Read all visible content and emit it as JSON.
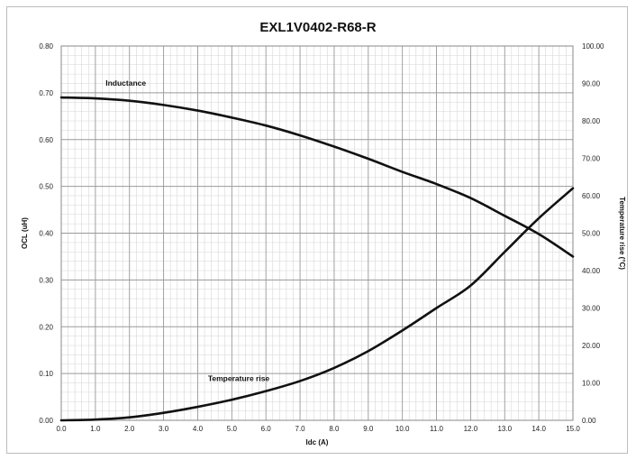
{
  "chart_data": {
    "type": "line",
    "title": "EXL1V0402-R68-R",
    "xlabel": "Idc (A)",
    "ylabel": "OCL (uH)",
    "y2label": "Temperature rise (°C)",
    "xlim": [
      0,
      15
    ],
    "ylim": [
      0,
      0.8
    ],
    "y2lim": [
      0,
      100
    ],
    "x_ticks": [
      "0.0",
      "1.0",
      "2.0",
      "3.0",
      "4.0",
      "5.0",
      "6.0",
      "7.0",
      "8.0",
      "9.0",
      "10.0",
      "11.0",
      "12.0",
      "13.0",
      "14.0",
      "15.0"
    ],
    "y_ticks": [
      "0.00",
      "0.10",
      "0.20",
      "0.30",
      "0.40",
      "0.50",
      "0.60",
      "0.70",
      "0.80"
    ],
    "y2_ticks": [
      "0.00",
      "10.00",
      "20.00",
      "30.00",
      "40.00",
      "50.00",
      "60.00",
      "70.00",
      "80.00",
      "90.00",
      "100.00"
    ],
    "grid": true,
    "legend": "none",
    "series": [
      {
        "name": "Inductance",
        "axis": "left",
        "color": "#111111",
        "x": [
          0,
          1,
          2,
          3,
          4,
          5,
          6,
          7,
          8,
          9,
          10,
          11,
          12,
          13,
          14,
          15
        ],
        "y": [
          0.69,
          0.688,
          0.683,
          0.674,
          0.662,
          0.647,
          0.63,
          0.609,
          0.585,
          0.559,
          0.531,
          0.505,
          0.475,
          0.437,
          0.398,
          0.35
        ]
      },
      {
        "name": "Temperature rise",
        "axis": "right",
        "color": "#111111",
        "x": [
          0,
          1,
          2,
          3,
          4,
          5,
          6,
          7,
          8,
          9,
          10,
          11,
          12,
          13,
          14,
          15
        ],
        "y": [
          0.0,
          0.2,
          0.8,
          2.0,
          3.6,
          5.5,
          7.8,
          10.5,
          14.0,
          18.5,
          24.0,
          30.0,
          36.0,
          45.0,
          54.0,
          62.0
        ]
      }
    ],
    "annotations": [
      {
        "text": "Inductance",
        "x": 1.3,
        "y": 0.715,
        "axis": "left"
      },
      {
        "text": "Temperature rise",
        "x": 4.3,
        "y": 10.5,
        "axis": "right"
      }
    ]
  }
}
